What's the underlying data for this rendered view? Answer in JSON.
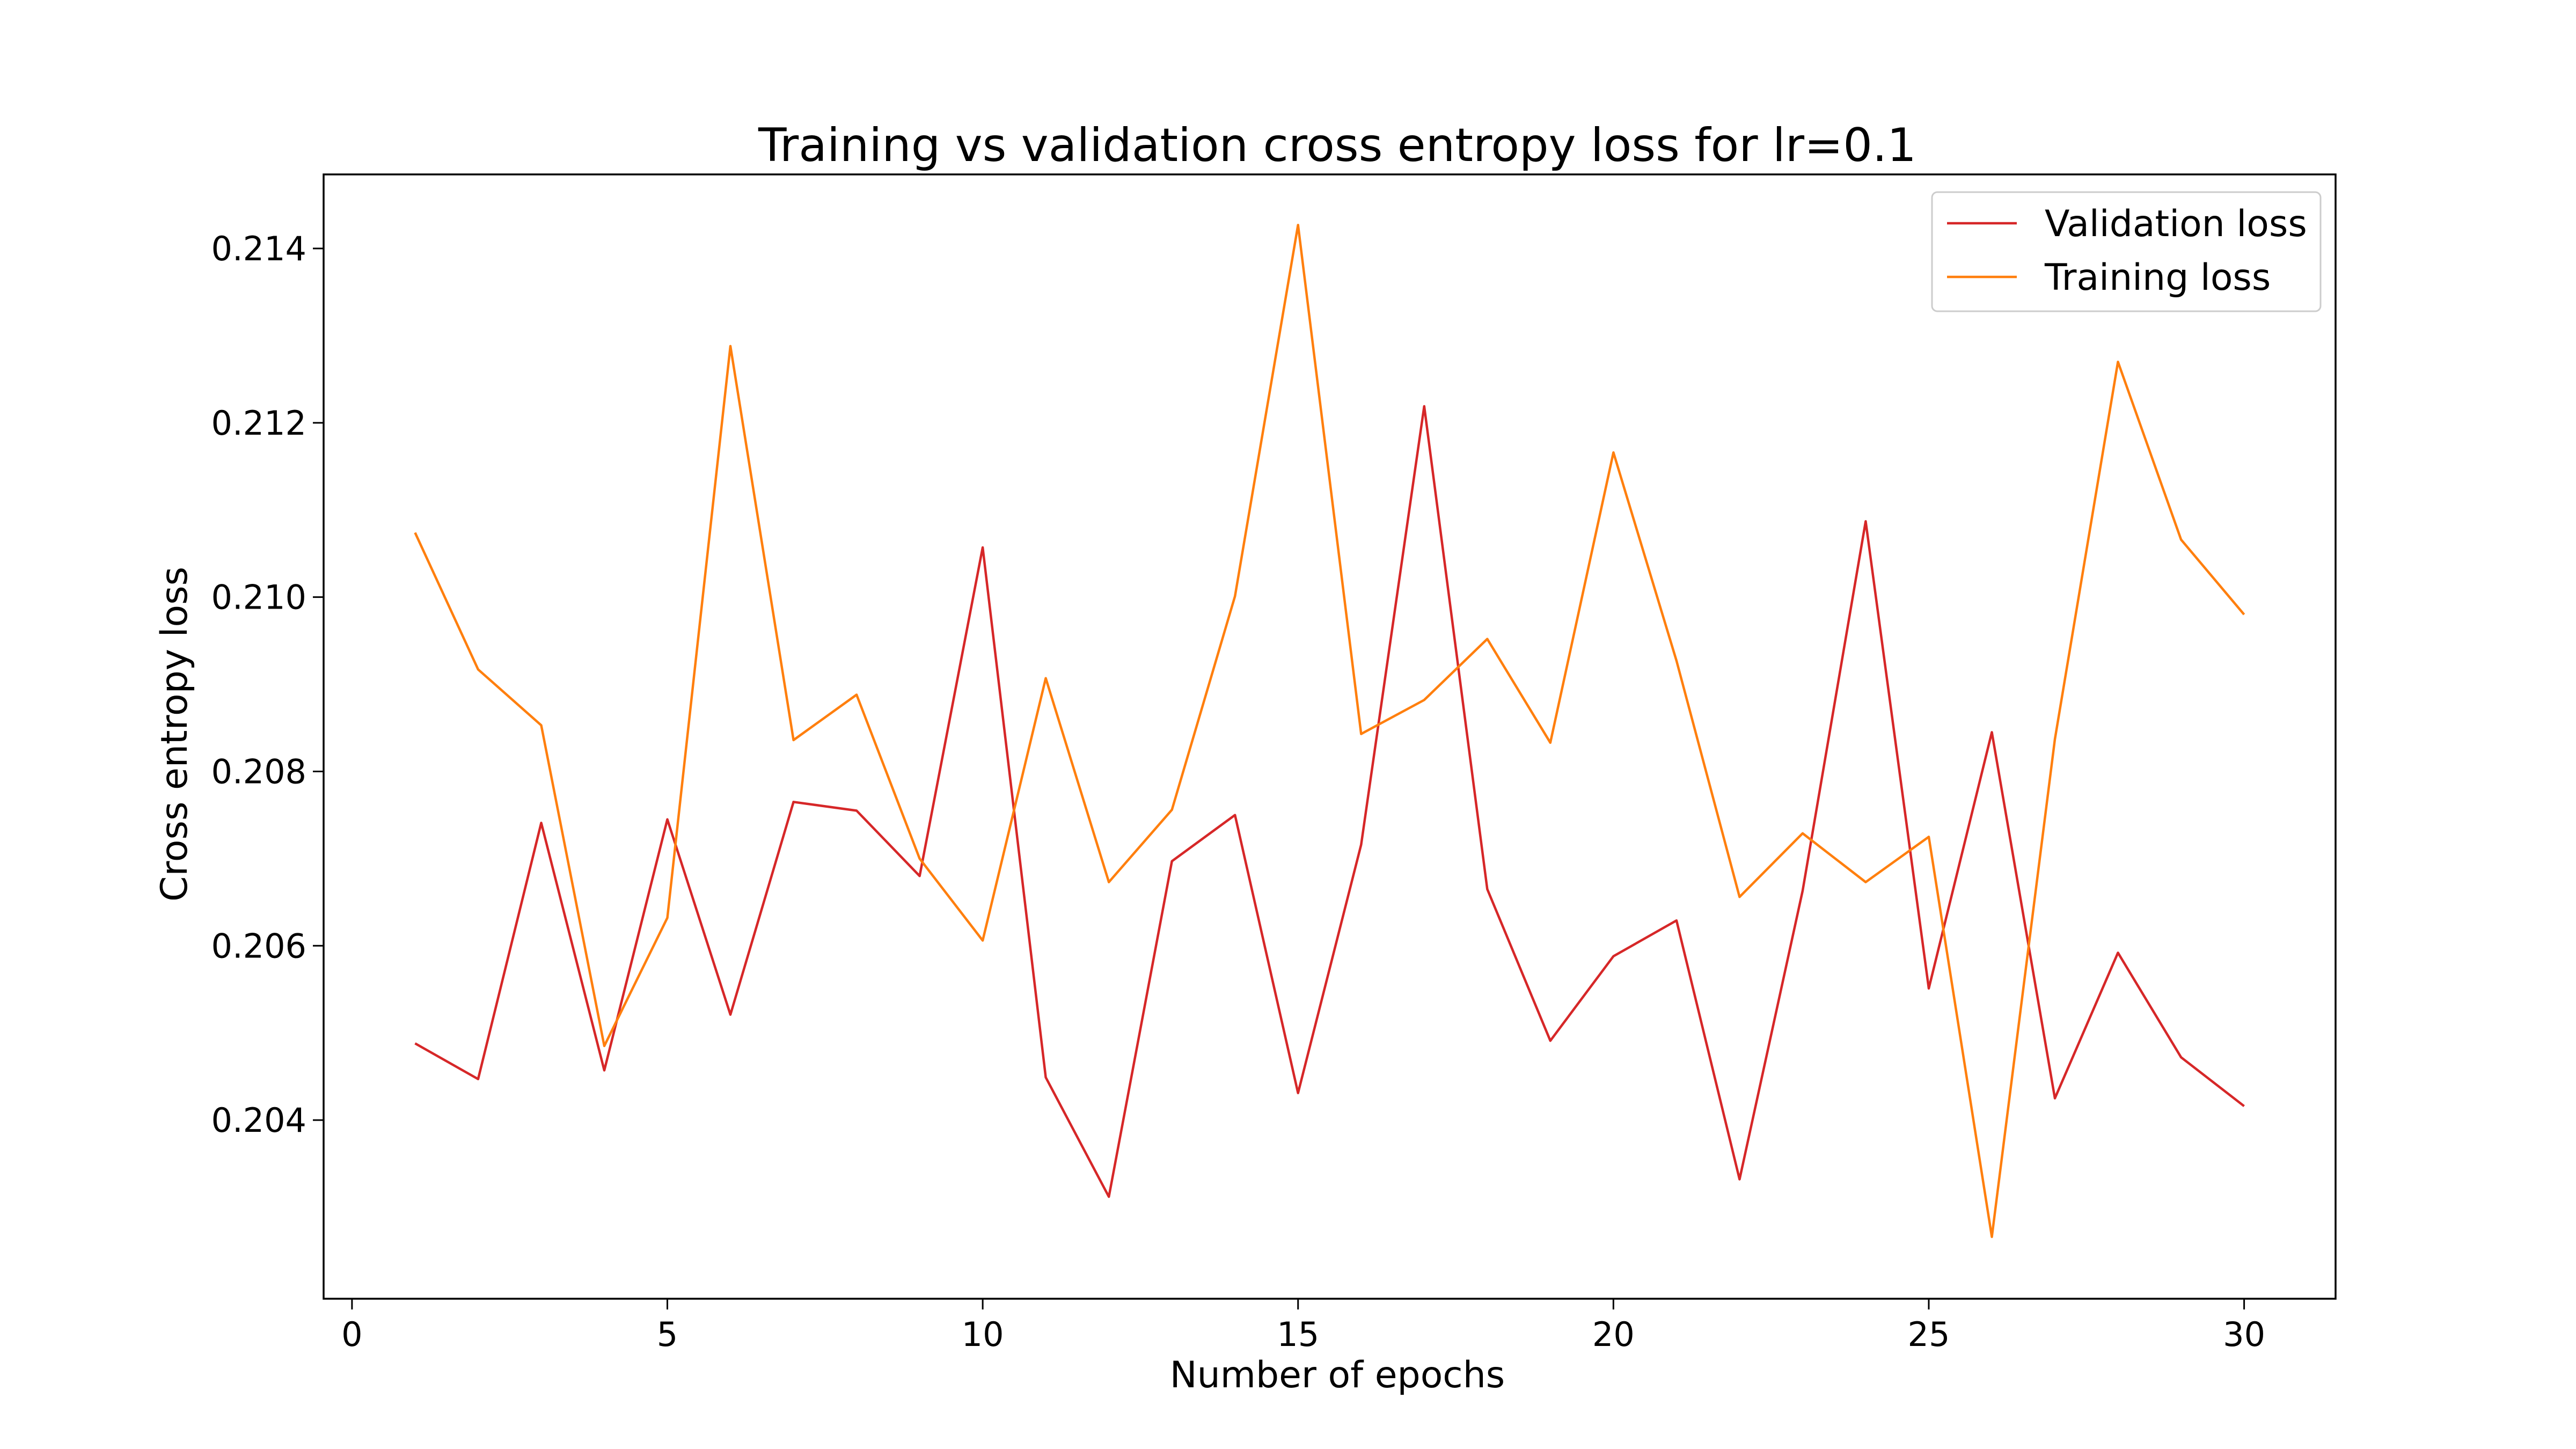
{
  "chart_data": {
    "type": "line",
    "title": "Training vs validation cross entropy loss for lr=0.1",
    "xlabel": "Number of epochs",
    "ylabel": "Cross entropy loss",
    "xlim": [
      -0.45,
      31.45
    ],
    "ylim": [
      0.20195,
      0.21485
    ],
    "xticks": [
      0,
      5,
      10,
      15,
      20,
      25,
      30
    ],
    "xtick_labels": [
      "0",
      "5",
      "10",
      "15",
      "20",
      "25",
      "30"
    ],
    "yticks": [
      0.204,
      0.206,
      0.208,
      0.21,
      0.212,
      0.214
    ],
    "ytick_labels": [
      "0.204",
      "0.206",
      "0.208",
      "0.210",
      "0.212",
      "0.214"
    ],
    "grid": false,
    "legend_position": "upper right",
    "x": [
      1,
      2,
      3,
      4,
      5,
      6,
      7,
      8,
      9,
      10,
      11,
      12,
      13,
      14,
      15,
      16,
      17,
      18,
      19,
      20,
      21,
      22,
      23,
      24,
      25,
      26,
      27,
      28,
      29,
      30
    ],
    "series": [
      {
        "name": "Validation loss",
        "color": "#d62728",
        "values": [
          0.20488,
          0.20447,
          0.20741,
          0.20457,
          0.20745,
          0.20521,
          0.20765,
          0.20755,
          0.2068,
          0.21057,
          0.20449,
          0.20312,
          0.20697,
          0.2075,
          0.20431,
          0.20716,
          0.21219,
          0.20665,
          0.20491,
          0.20588,
          0.20629,
          0.20332,
          0.20663,
          0.21087,
          0.20551,
          0.20845,
          0.20425,
          0.20592,
          0.20472,
          0.20416
        ]
      },
      {
        "name": "Training loss",
        "color": "#ff7f0e",
        "values": [
          0.21074,
          0.20917,
          0.20853,
          0.20485,
          0.20632,
          0.21288,
          0.20836,
          0.20888,
          0.207,
          0.20606,
          0.20907,
          0.20673,
          0.20756,
          0.21001,
          0.21427,
          0.20843,
          0.20882,
          0.20952,
          0.20833,
          0.21166,
          0.20927,
          0.20656,
          0.20729,
          0.20673,
          0.20725,
          0.20266,
          0.20837,
          0.2127,
          0.21066,
          0.2098
        ]
      }
    ]
  }
}
